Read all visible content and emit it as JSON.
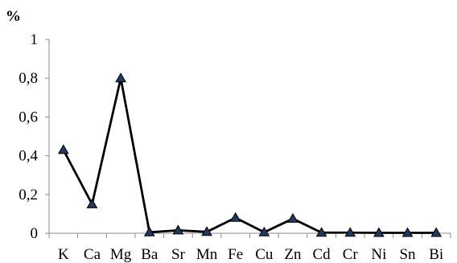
{
  "chart_data": {
    "type": "line",
    "ylabel": "%",
    "xlabel": "",
    "title": "",
    "ylim": [
      0,
      1
    ],
    "yticks": [
      0,
      0.2,
      0.4,
      0.6,
      0.8,
      1
    ],
    "ytick_labels": [
      "0",
      "0,2",
      "0,4",
      "0,6",
      "0,8",
      "1"
    ],
    "categories": [
      "K",
      "Ca",
      "Mg",
      "Ba",
      "Sr",
      "Mn",
      "Fe",
      "Cu",
      "Zn",
      "Cd",
      "Cr",
      "Ni",
      "Sn",
      "Bi"
    ],
    "series": [
      {
        "values": [
          0.43,
          0.15,
          0.8,
          0.005,
          0.015,
          0.007,
          0.08,
          0.005,
          0.075,
          0.003,
          0.003,
          0.002,
          0.002,
          0.002
        ],
        "color": "#000000",
        "marker": "triangle",
        "marker_color": "#1f3a5f"
      }
    ],
    "grid": false,
    "legend": "none"
  }
}
